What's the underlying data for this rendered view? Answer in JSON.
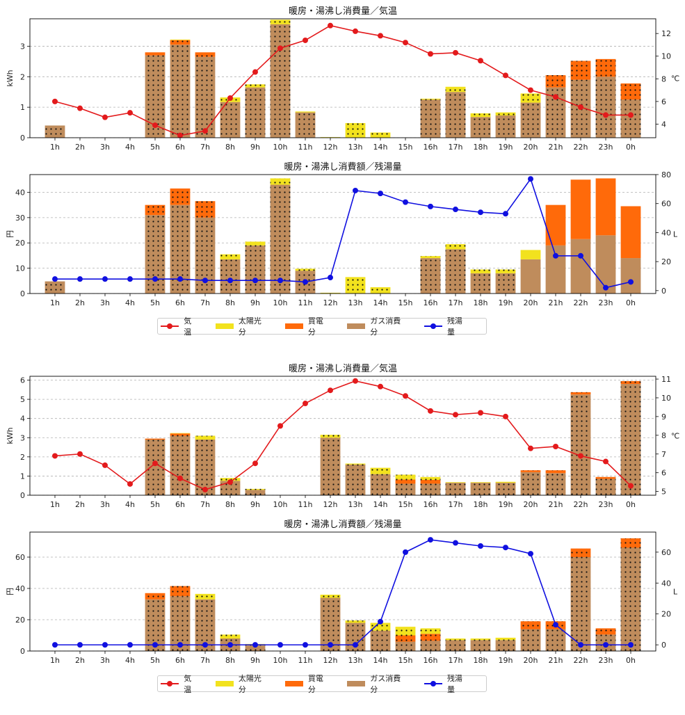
{
  "colors": {
    "temp": "#e31a1c",
    "solar": "#f2e21e",
    "grid": "#ff6a0a",
    "gas": "#bf8c5c",
    "water": "#1010e0"
  },
  "legend": {
    "temp": "気温",
    "solar": "太陽光分",
    "grid": "買電分",
    "gas": "ガス消費分",
    "water": "残湯量"
  },
  "chart_data": [
    {
      "type": "bar",
      "title": "暖房・湯沸し消費量／気温",
      "ylabel": "kWh",
      "y2label": "℃",
      "ylim": [
        0,
        3.9
      ],
      "yticks": [
        0,
        1,
        2,
        3
      ],
      "y2lim": [
        2.8,
        13.3
      ],
      "y2ticks": [
        4,
        6,
        8,
        10,
        12
      ],
      "categories": [
        "1h",
        "2h",
        "3h",
        "4h",
        "5h",
        "6h",
        "7h",
        "8h",
        "9h",
        "10h",
        "11h",
        "12h",
        "13h",
        "14h",
        "15h",
        "16h",
        "17h",
        "18h",
        "19h",
        "20h",
        "21h",
        "22h",
        "23h",
        "0h"
      ],
      "series": [
        {
          "name": "ガス消費分",
          "kind": "bar",
          "values": [
            0.4,
            0,
            0,
            0,
            2.7,
            3.05,
            2.65,
            1.17,
            1.65,
            3.72,
            0.83,
            0,
            0,
            0,
            0,
            1.25,
            1.5,
            0.68,
            0.73,
            1.15,
            1.65,
            1.9,
            2.0,
            1.25
          ]
        },
        {
          "name": "買電分",
          "kind": "bar",
          "values": [
            0,
            0,
            0,
            0,
            0.1,
            0.15,
            0.15,
            0,
            0,
            0,
            0,
            0,
            0,
            0,
            0,
            0,
            0,
            0,
            0,
            0,
            0.4,
            0.62,
            0.58,
            0.53
          ]
        },
        {
          "name": "太陽光分",
          "kind": "bar",
          "values": [
            0,
            0,
            0,
            0,
            0,
            0.02,
            0,
            0.15,
            0.1,
            0.15,
            0.03,
            0.02,
            0.48,
            0.17,
            0,
            0.03,
            0.17,
            0.12,
            0.1,
            0.3,
            0,
            0,
            0,
            0
          ]
        },
        {
          "name": "気温",
          "kind": "line",
          "axis": "right",
          "values": [
            6.0,
            5.4,
            4.6,
            5.0,
            3.9,
            3.0,
            3.4,
            6.3,
            8.6,
            10.7,
            11.4,
            12.7,
            12.2,
            11.8,
            11.2,
            10.2,
            10.3,
            9.6,
            8.3,
            7.0,
            6.4,
            5.5,
            4.8,
            4.8
          ]
        }
      ]
    },
    {
      "type": "bar",
      "title": "暖房・湯沸し消費額／残湯量",
      "ylabel": "円",
      "y2label": "L",
      "ylim": [
        0,
        47
      ],
      "yticks": [
        0,
        10,
        20,
        30,
        40
      ],
      "y2lim": [
        -2,
        80
      ],
      "y2ticks": [
        0,
        20,
        40,
        60,
        80
      ],
      "categories": [
        "1h",
        "2h",
        "3h",
        "4h",
        "5h",
        "6h",
        "7h",
        "8h",
        "9h",
        "10h",
        "11h",
        "12h",
        "13h",
        "14h",
        "15h",
        "16h",
        "17h",
        "18h",
        "19h",
        "20h",
        "21h",
        "22h",
        "23h",
        "0h"
      ],
      "series": [
        {
          "name": "ガス消費分",
          "kind": "bar",
          "values": [
            4.8,
            0,
            0,
            0,
            31,
            35,
            30,
            13.5,
            19,
            43,
            9,
            0,
            0,
            0,
            0,
            14,
            17.5,
            8,
            8,
            13.5,
            19,
            21.5,
            23,
            14
          ]
        },
        {
          "name": "買電分",
          "kind": "bar",
          "values": [
            0,
            0,
            0,
            0,
            4,
            6.5,
            6.5,
            0,
            0,
            0,
            0,
            0,
            0,
            0,
            0,
            0,
            0,
            0,
            0,
            0,
            16,
            23.5,
            22.5,
            20.5
          ]
        },
        {
          "name": "太陽光分",
          "kind": "bar",
          "values": [
            0,
            0,
            0,
            0,
            0,
            0,
            0,
            2,
            1.5,
            2.5,
            0.8,
            0.3,
            6.5,
            2.5,
            0,
            0.8,
            2,
            1.5,
            1.5,
            3.7,
            0,
            0,
            0,
            0
          ]
        },
        {
          "name": "残湯量",
          "kind": "line",
          "axis": "right",
          "values": [
            8,
            8,
            8,
            8,
            8,
            8,
            7,
            7,
            7,
            7,
            6,
            9,
            69,
            67,
            61,
            58,
            56,
            54,
            53,
            77,
            24,
            24,
            2,
            6
          ]
        }
      ]
    },
    {
      "type": "bar",
      "title": "暖房・湯沸し消費量／気温",
      "ylabel": "kWh",
      "y2label": "℃",
      "ylim": [
        0,
        6.2
      ],
      "yticks": [
        0,
        1,
        2,
        3,
        4,
        5,
        6
      ],
      "y2lim": [
        4.8,
        11.15
      ],
      "y2ticks": [
        5,
        6,
        7,
        8,
        9,
        10,
        11
      ],
      "categories": [
        "1h",
        "2h",
        "3h",
        "4h",
        "5h",
        "6h",
        "7h",
        "8h",
        "9h",
        "10h",
        "11h",
        "12h",
        "13h",
        "14h",
        "15h",
        "16h",
        "17h",
        "18h",
        "19h",
        "20h",
        "21h",
        "22h",
        "23h",
        "0h"
      ],
      "series": [
        {
          "name": "ガス消費分",
          "kind": "bar",
          "values": [
            0,
            0,
            0,
            0,
            2.9,
            3.1,
            2.9,
            0.75,
            0.28,
            0,
            0,
            3.0,
            1.6,
            1.1,
            0.6,
            0.6,
            0.65,
            0.65,
            0.65,
            1.2,
            1.15,
            5.25,
            0.85,
            5.8
          ]
        },
        {
          "name": "買電分",
          "kind": "bar",
          "values": [
            0,
            0,
            0,
            0,
            0.05,
            0.12,
            0,
            0,
            0,
            0,
            0,
            0,
            0,
            0,
            0.22,
            0.2,
            0,
            0,
            0,
            0.1,
            0.15,
            0.12,
            0.1,
            0.15
          ]
        },
        {
          "name": "太陽光分",
          "kind": "bar",
          "values": [
            0,
            0,
            0,
            0,
            0,
            0.02,
            0.2,
            0.15,
            0.05,
            0,
            0,
            0.15,
            0.05,
            0.33,
            0.25,
            0.15,
            0.03,
            0.03,
            0.05,
            0,
            0,
            0,
            0,
            0
          ]
        },
        {
          "name": "気温",
          "kind": "line",
          "axis": "right",
          "values": [
            6.9,
            7.0,
            6.4,
            5.4,
            6.5,
            5.7,
            5.1,
            5.5,
            6.5,
            8.5,
            9.7,
            10.4,
            10.9,
            10.6,
            10.1,
            9.3,
            9.1,
            9.2,
            9.0,
            7.3,
            7.4,
            6.9,
            6.6,
            5.3
          ]
        }
      ]
    },
    {
      "type": "bar",
      "title": "暖房・湯沸し消費額／残湯量",
      "ylabel": "円",
      "y2label": "L",
      "ylim": [
        0,
        76
      ],
      "yticks": [
        0,
        20,
        40,
        60
      ],
      "y2lim": [
        -4,
        73
      ],
      "y2ticks": [
        0,
        20,
        40,
        60
      ],
      "categories": [
        "1h",
        "2h",
        "3h",
        "4h",
        "5h",
        "6h",
        "7h",
        "8h",
        "9h",
        "10h",
        "11h",
        "12h",
        "13h",
        "14h",
        "15h",
        "16h",
        "17h",
        "18h",
        "19h",
        "20h",
        "21h",
        "22h",
        "23h",
        "0h"
      ],
      "series": [
        {
          "name": "ガス消費分",
          "kind": "bar",
          "values": [
            0,
            0,
            0,
            0,
            33,
            35,
            33,
            8,
            3.5,
            0,
            0,
            34,
            18,
            13,
            6,
            6.5,
            7,
            7,
            7,
            14,
            14,
            60,
            10.5,
            66
          ]
        },
        {
          "name": "買電分",
          "kind": "bar",
          "values": [
            0,
            0,
            0,
            0,
            4,
            6.5,
            0,
            0,
            0,
            0,
            0,
            0,
            0,
            0,
            4,
            4.5,
            0,
            0,
            0,
            5,
            5,
            5.5,
            4,
            6
          ]
        },
        {
          "name": "太陽光分",
          "kind": "bar",
          "values": [
            0,
            0,
            0,
            0,
            0,
            0,
            3.5,
            2.5,
            1,
            0,
            0,
            2,
            1.5,
            5,
            5.5,
            3.5,
            1,
            1,
            1.5,
            0,
            0,
            0,
            0,
            0
          ]
        },
        {
          "name": "残湯量",
          "kind": "line",
          "axis": "right",
          "values": [
            0,
            0,
            0,
            0,
            0,
            0,
            0,
            0,
            0,
            0,
            0,
            0,
            0,
            15,
            60,
            68,
            66,
            64,
            63,
            59,
            13,
            0,
            0,
            0
          ]
        }
      ]
    }
  ]
}
